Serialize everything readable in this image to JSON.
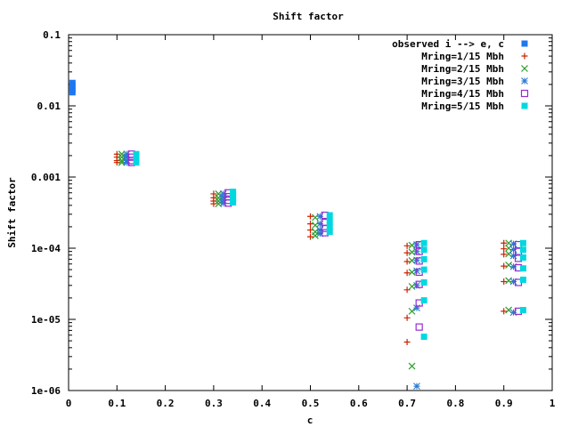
{
  "chart_data": {
    "type": "scatter",
    "title": "Shift factor",
    "xlabel": "c",
    "ylabel": "Shift factor",
    "xlim": [
      0,
      1
    ],
    "ylim": [
      1e-06,
      0.1
    ],
    "yscale": "log",
    "grid": false,
    "legend_position": "top-right",
    "xticks": [
      0,
      0.1,
      0.2,
      0.3,
      0.4,
      0.5,
      0.6,
      0.7,
      0.8,
      0.9,
      1
    ],
    "xtick_labels": [
      "0",
      "0.1",
      "0.2",
      "0.3",
      "0.4",
      "0.5",
      "0.6",
      "0.7",
      "0.8",
      "0.9",
      "1"
    ],
    "yticks": [
      1e-06,
      1e-05,
      0.0001,
      0.001,
      0.01,
      0.1
    ],
    "ytick_labels": [
      "1e-06",
      "1e-05",
      "1e-04",
      "0.001",
      "0.01",
      "0.1"
    ],
    "series": [
      {
        "name": "observed i --> e, c",
        "marker": "filled-square",
        "color": "#1f77f0",
        "points": [
          [
            0.008,
            0.021
          ],
          [
            0.008,
            0.019
          ],
          [
            0.008,
            0.017
          ],
          [
            0.008,
            0.0155
          ]
        ]
      },
      {
        "name": "Mring=1/15 Mbh",
        "marker": "plus",
        "color": "#cc2200",
        "points": [
          [
            0.1,
            0.0021
          ],
          [
            0.1,
            0.0019
          ],
          [
            0.1,
            0.0017
          ],
          [
            0.1,
            0.0016
          ],
          [
            0.3,
            0.00058
          ],
          [
            0.3,
            0.00051
          ],
          [
            0.3,
            0.00046
          ],
          [
            0.3,
            0.00042
          ],
          [
            0.5,
            0.00028
          ],
          [
            0.5,
            0.00022
          ],
          [
            0.5,
            0.00018
          ],
          [
            0.5,
            0.000145
          ],
          [
            0.7,
            0.000108
          ],
          [
            0.7,
            8.6e-05
          ],
          [
            0.7,
            6.5e-05
          ],
          [
            0.7,
            4.5e-05
          ],
          [
            0.7,
            2.6e-05
          ],
          [
            0.7,
            1.05e-05
          ],
          [
            0.7,
            4.8e-06
          ],
          [
            0.9,
            0.000118
          ],
          [
            0.9,
            9.8e-05
          ],
          [
            0.9,
            8.2e-05
          ],
          [
            0.9,
            5.6e-05
          ],
          [
            0.9,
            3.4e-05
          ],
          [
            0.9,
            1.3e-05
          ]
        ]
      },
      {
        "name": "Mring=2/15 Mbh",
        "marker": "cross",
        "color": "#2a9d2a",
        "points": [
          [
            0.11,
            0.0021
          ],
          [
            0.11,
            0.0019
          ],
          [
            0.11,
            0.0017
          ],
          [
            0.11,
            0.0016
          ],
          [
            0.31,
            0.00058
          ],
          [
            0.31,
            0.00051
          ],
          [
            0.31,
            0.00046
          ],
          [
            0.31,
            0.00042
          ],
          [
            0.51,
            0.00027
          ],
          [
            0.51,
            0.00021
          ],
          [
            0.51,
            0.00017
          ],
          [
            0.51,
            0.00015
          ],
          [
            0.71,
            0.00011
          ],
          [
            0.71,
            8.8e-05
          ],
          [
            0.71,
            6.7e-05
          ],
          [
            0.71,
            4.6e-05
          ],
          [
            0.71,
            2.9e-05
          ],
          [
            0.71,
            1.3e-05
          ],
          [
            0.71,
            2.2e-06
          ],
          [
            0.91,
            0.000118
          ],
          [
            0.91,
            0.0001
          ],
          [
            0.91,
            8.3e-05
          ],
          [
            0.91,
            5.8e-05
          ],
          [
            0.91,
            3.5e-05
          ],
          [
            0.91,
            1.35e-05
          ]
        ]
      },
      {
        "name": "Mring=3/15 Mbh",
        "marker": "star",
        "color": "#2a7ad0",
        "points": [
          [
            0.12,
            0.0021
          ],
          [
            0.12,
            0.0019
          ],
          [
            0.12,
            0.0017
          ],
          [
            0.12,
            0.0016
          ],
          [
            0.32,
            0.00058
          ],
          [
            0.32,
            0.00052
          ],
          [
            0.32,
            0.00047
          ],
          [
            0.32,
            0.00043
          ],
          [
            0.52,
            0.00028
          ],
          [
            0.52,
            0.00022
          ],
          [
            0.52,
            0.00018
          ],
          [
            0.52,
            0.00016
          ],
          [
            0.72,
            0.000112
          ],
          [
            0.72,
            9e-05
          ],
          [
            0.72,
            6.8e-05
          ],
          [
            0.72,
            4.8e-05
          ],
          [
            0.72,
            3e-05
          ],
          [
            0.72,
            1.45e-05
          ],
          [
            0.72,
            1.15e-06
          ],
          [
            0.92,
            0.000115
          ],
          [
            0.92,
            9.6e-05
          ],
          [
            0.92,
            7.8e-05
          ],
          [
            0.92,
            5.5e-05
          ],
          [
            0.92,
            3.4e-05
          ],
          [
            0.92,
            1.25e-05
          ]
        ]
      },
      {
        "name": "Mring=4/15 Mbh",
        "marker": "open-square",
        "color": "#9a2ad0",
        "points": [
          [
            0.13,
            0.0021
          ],
          [
            0.13,
            0.0019
          ],
          [
            0.13,
            0.0017
          ],
          [
            0.13,
            0.0016
          ],
          [
            0.33,
            0.0006
          ],
          [
            0.33,
            0.00053
          ],
          [
            0.33,
            0.00047
          ],
          [
            0.33,
            0.00043
          ],
          [
            0.53,
            0.00029
          ],
          [
            0.53,
            0.00023
          ],
          [
            0.53,
            0.00019
          ],
          [
            0.53,
            0.000165
          ],
          [
            0.725,
            0.000112
          ],
          [
            0.725,
            9e-05
          ],
          [
            0.725,
            6.6e-05
          ],
          [
            0.725,
            4.6e-05
          ],
          [
            0.725,
            3.1e-05
          ],
          [
            0.725,
            1.7e-05
          ],
          [
            0.725,
            7.8e-06
          ],
          [
            0.93,
            0.000112
          ],
          [
            0.93,
            9e-05
          ],
          [
            0.93,
            7.2e-05
          ],
          [
            0.93,
            5.3e-05
          ],
          [
            0.93,
            3.3e-05
          ],
          [
            0.93,
            1.3e-05
          ]
        ]
      },
      {
        "name": "Mring=5/15 Mbh",
        "marker": "filled-square",
        "color": "#00d8e0",
        "points": [
          [
            0.14,
            0.0021
          ],
          [
            0.14,
            0.0019
          ],
          [
            0.14,
            0.0017
          ],
          [
            0.14,
            0.0016
          ],
          [
            0.34,
            0.00062
          ],
          [
            0.34,
            0.00055
          ],
          [
            0.34,
            0.00049
          ],
          [
            0.34,
            0.00044
          ],
          [
            0.54,
            0.00029
          ],
          [
            0.54,
            0.00024
          ],
          [
            0.54,
            0.0002
          ],
          [
            0.54,
            0.00017
          ],
          [
            0.735,
            0.000118
          ],
          [
            0.735,
            9.5e-05
          ],
          [
            0.735,
            7e-05
          ],
          [
            0.735,
            5e-05
          ],
          [
            0.735,
            3.3e-05
          ],
          [
            0.735,
            1.85e-05
          ],
          [
            0.735,
            5.7e-06
          ],
          [
            0.94,
            0.000118
          ],
          [
            0.94,
            9.5e-05
          ],
          [
            0.94,
            7.4e-05
          ],
          [
            0.94,
            5.2e-05
          ],
          [
            0.94,
            3.6e-05
          ],
          [
            0.94,
            1.35e-05
          ]
        ]
      }
    ]
  }
}
